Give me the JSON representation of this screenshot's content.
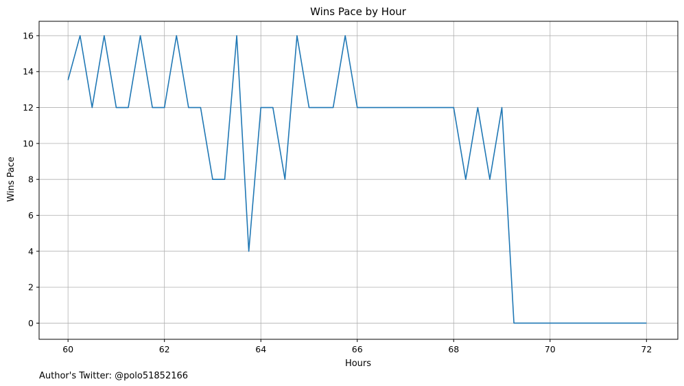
{
  "chart_data": {
    "type": "line",
    "title": "Wins Pace by Hour",
    "xlabel": "Hours",
    "ylabel": "Wins Pace",
    "xlim": [
      59.4,
      72.65
    ],
    "ylim": [
      -0.9,
      16.8
    ],
    "xticks": [
      60,
      62,
      64,
      66,
      68,
      70,
      72
    ],
    "yticks": [
      0,
      2,
      4,
      6,
      8,
      10,
      12,
      14,
      16
    ],
    "xtick_labels": [
      "60",
      "62",
      "64",
      "66",
      "68",
      "70",
      "72"
    ],
    "ytick_labels": [
      "0",
      "2",
      "4",
      "6",
      "8",
      "10",
      "12",
      "14",
      "16"
    ],
    "grid": true,
    "line_color": "#1f77b4",
    "series": [
      {
        "x": [
          60,
          60.25,
          60.5,
          60.75,
          61,
          61.25,
          61.5,
          61.75,
          62,
          62.25,
          62.5,
          62.75,
          63,
          63.25,
          63.5,
          63.75,
          64,
          64.25,
          64.5,
          64.75,
          65,
          65.25,
          65.5,
          65.75,
          66,
          66.25,
          66.5,
          66.75,
          67,
          67.25,
          67.5,
          67.75,
          68,
          68.25,
          68.5,
          68.75,
          69,
          69.25,
          69.5,
          69.75,
          70,
          70.25,
          70.5,
          70.75,
          71,
          71.25,
          71.5,
          71.75,
          72
        ],
        "y": [
          13.53,
          16,
          12,
          16,
          12,
          12,
          16,
          12,
          12,
          16,
          12,
          12,
          8,
          8,
          16,
          4,
          12,
          12,
          8,
          16,
          12,
          12,
          12,
          16,
          12,
          12,
          12,
          12,
          12,
          12,
          12,
          12,
          12,
          8,
          12,
          8,
          12,
          0,
          0,
          0,
          0,
          0,
          0,
          0,
          0,
          0,
          0,
          0,
          0
        ]
      }
    ]
  },
  "footer": {
    "text": "Author's Twitter: @polo51852166"
  }
}
